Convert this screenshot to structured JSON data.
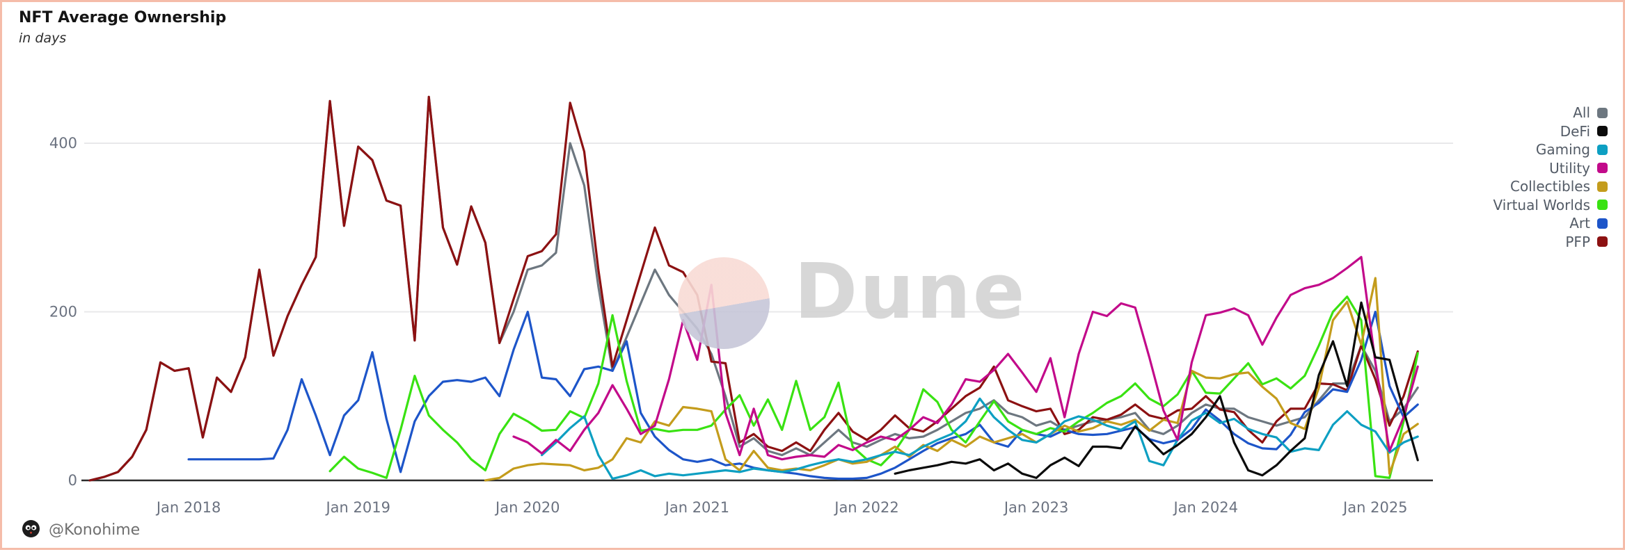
{
  "header": {
    "title": "NFT Average Ownership",
    "subtitle": "in days"
  },
  "watermark": {
    "text": "Dune"
  },
  "badge": {
    "text": "@Konohime"
  },
  "colors": {
    "border": "#f5bca9",
    "axis_line": "#2b2b2b",
    "gridline": "#e8e8ea",
    "tick_text": "#6b7280",
    "legend_text": "#535b66"
  },
  "chart_data": {
    "type": "line",
    "title": "NFT Average Ownership",
    "ylabel": "in days",
    "ylim": [
      0,
      470
    ],
    "yticks": [
      0,
      200,
      400
    ],
    "grid": "horizontal",
    "legend_position": "right-outside",
    "x": [
      "2017-06",
      "2017-07",
      "2017-08",
      "2017-09",
      "2017-10",
      "2017-11",
      "2017-12",
      "2018-01",
      "2018-02",
      "2018-03",
      "2018-04",
      "2018-05",
      "2018-06",
      "2018-07",
      "2018-08",
      "2018-09",
      "2018-10",
      "2018-11",
      "2018-12",
      "2019-01",
      "2019-02",
      "2019-03",
      "2019-04",
      "2019-05",
      "2019-06",
      "2019-07",
      "2019-08",
      "2019-09",
      "2019-10",
      "2019-11",
      "2019-12",
      "2020-01",
      "2020-02",
      "2020-03",
      "2020-04",
      "2020-05",
      "2020-06",
      "2020-07",
      "2020-08",
      "2020-09",
      "2020-10",
      "2020-11",
      "2020-12",
      "2021-01",
      "2021-02",
      "2021-03",
      "2021-04",
      "2021-05",
      "2021-06",
      "2021-07",
      "2021-08",
      "2021-09",
      "2021-10",
      "2021-11",
      "2021-12",
      "2022-01",
      "2022-02",
      "2022-03",
      "2022-04",
      "2022-05",
      "2022-06",
      "2022-07",
      "2022-08",
      "2022-09",
      "2022-10",
      "2022-11",
      "2022-12",
      "2023-01",
      "2023-02",
      "2023-03",
      "2023-04",
      "2023-05",
      "2023-06",
      "2023-07",
      "2023-08",
      "2023-09",
      "2023-10",
      "2023-11",
      "2023-12",
      "2024-01",
      "2024-02",
      "2024-03",
      "2024-04",
      "2024-05",
      "2024-06",
      "2024-07",
      "2024-08",
      "2024-09",
      "2024-10",
      "2024-11",
      "2024-12",
      "2025-01",
      "2025-02",
      "2025-03",
      "2025-04"
    ],
    "xtick_labels": [
      "Jan 2018",
      "Jan 2019",
      "Jan 2020",
      "Jan 2021",
      "Jan 2022",
      "Jan 2023",
      "Jan 2024",
      "Jan 2025"
    ],
    "xtick_month_indices": [
      7,
      19,
      31,
      43,
      55,
      67,
      79,
      91
    ],
    "draw_order": [
      0,
      7,
      6,
      5,
      4,
      2,
      3,
      1
    ],
    "series": [
      {
        "name": "All",
        "color": "#6d7780",
        "values": [
          0,
          4,
          10,
          28,
          60,
          140,
          130,
          133,
          51,
          122,
          105,
          146,
          250,
          148,
          195,
          232,
          265,
          450,
          302,
          396,
          380,
          332,
          326,
          166,
          455,
          300,
          256,
          325,
          282,
          163,
          200,
          250,
          255,
          270,
          400,
          350,
          230,
          130,
          170,
          210,
          250,
          220,
          200,
          180,
          150,
          100,
          40,
          50,
          35,
          30,
          38,
          30,
          45,
          60,
          45,
          40,
          48,
          55,
          50,
          52,
          60,
          70,
          80,
          85,
          95,
          80,
          75,
          65,
          70,
          60,
          65,
          70,
          72,
          75,
          80,
          60,
          55,
          65,
          80,
          90,
          85,
          85,
          75,
          70,
          65,
          70,
          75,
          95,
          115,
          115,
          160,
          130,
          70,
          85,
          110
        ]
      },
      {
        "name": "DeFi",
        "color": "#0b0b0b",
        "values": [
          null,
          null,
          null,
          null,
          null,
          null,
          null,
          null,
          null,
          null,
          null,
          null,
          null,
          null,
          null,
          null,
          null,
          null,
          null,
          null,
          null,
          null,
          null,
          null,
          null,
          null,
          null,
          null,
          null,
          null,
          null,
          null,
          null,
          null,
          null,
          null,
          null,
          null,
          null,
          null,
          null,
          null,
          null,
          null,
          null,
          null,
          null,
          null,
          null,
          null,
          null,
          null,
          null,
          null,
          null,
          null,
          null,
          8,
          12,
          15,
          18,
          22,
          20,
          25,
          12,
          20,
          8,
          3,
          18,
          27,
          17,
          40,
          40,
          38,
          64,
          48,
          31,
          42,
          55,
          75,
          100,
          45,
          12,
          6,
          18,
          35,
          50,
          125,
          165,
          112,
          211,
          146,
          143,
          83,
          24
        ]
      },
      {
        "name": "Gaming",
        "color": "#0d9fc2",
        "values": [
          null,
          null,
          null,
          null,
          null,
          null,
          null,
          null,
          null,
          null,
          null,
          null,
          null,
          null,
          null,
          null,
          null,
          null,
          null,
          null,
          null,
          null,
          null,
          null,
          null,
          null,
          null,
          null,
          null,
          null,
          null,
          null,
          30,
          45,
          62,
          76,
          30,
          2,
          6,
          12,
          5,
          8,
          6,
          8,
          10,
          12,
          10,
          14,
          12,
          10,
          13,
          18,
          22,
          25,
          22,
          25,
          30,
          34,
          30,
          40,
          48,
          55,
          70,
          97,
          75,
          60,
          48,
          45,
          55,
          70,
          76,
          72,
          65,
          60,
          70,
          23,
          18,
          48,
          71,
          80,
          68,
          73,
          61,
          55,
          51,
          34,
          38,
          36,
          66,
          82,
          66,
          58,
          33,
          45,
          52
        ]
      },
      {
        "name": "Utility",
        "color": "#c20a8a",
        "values": [
          null,
          null,
          null,
          null,
          null,
          null,
          null,
          null,
          null,
          null,
          null,
          null,
          null,
          null,
          null,
          null,
          null,
          null,
          null,
          null,
          null,
          null,
          null,
          null,
          null,
          null,
          null,
          null,
          null,
          null,
          52,
          45,
          32,
          48,
          35,
          60,
          80,
          113,
          85,
          55,
          65,
          120,
          190,
          143,
          232,
          80,
          30,
          85,
          30,
          25,
          28,
          30,
          28,
          42,
          36,
          45,
          52,
          48,
          60,
          75,
          68,
          90,
          120,
          117,
          131,
          150,
          128,
          105,
          145,
          75,
          150,
          200,
          195,
          210,
          205,
          146,
          83,
          48,
          140,
          196,
          199,
          204,
          196,
          161,
          193,
          220,
          228,
          232,
          240,
          252,
          265,
          140,
          35,
          75,
          135
        ]
      },
      {
        "name": "Collectibles",
        "color": "#c49c1c",
        "values": [
          null,
          null,
          null,
          null,
          null,
          null,
          null,
          null,
          null,
          null,
          null,
          null,
          null,
          null,
          null,
          null,
          null,
          null,
          null,
          null,
          null,
          null,
          null,
          null,
          null,
          null,
          null,
          null,
          0,
          3,
          14,
          18,
          20,
          19,
          18,
          12,
          15,
          25,
          50,
          45,
          70,
          65,
          87,
          85,
          82,
          25,
          12,
          35,
          15,
          12,
          14,
          12,
          18,
          25,
          20,
          22,
          30,
          40,
          28,
          42,
          35,
          48,
          40,
          52,
          45,
          50,
          55,
          45,
          55,
          65,
          58,
          62,
          70,
          66,
          72,
          59,
          72,
          68,
          130,
          122,
          121,
          126,
          128,
          111,
          97,
          68,
          61,
          110,
          190,
          212,
          161,
          240,
          8,
          55,
          67
        ]
      },
      {
        "name": "Virtual Worlds",
        "color": "#39e212",
        "values": [
          null,
          null,
          null,
          null,
          null,
          null,
          null,
          null,
          null,
          null,
          null,
          null,
          null,
          null,
          null,
          null,
          null,
          11,
          28,
          14,
          9,
          3,
          60,
          124,
          77,
          60,
          45,
          25,
          12,
          55,
          79,
          70,
          59,
          60,
          82,
          74,
          115,
          196,
          118,
          59,
          61,
          58,
          60,
          60,
          65,
          84,
          101,
          65,
          96,
          60,
          118,
          60,
          75,
          116,
          40,
          25,
          18,
          35,
          60,
          108,
          93,
          60,
          45,
          70,
          94,
          70,
          60,
          55,
          62,
          58,
          70,
          80,
          92,
          100,
          115,
          97,
          88,
          102,
          130,
          104,
          103,
          121,
          139,
          114,
          121,
          109,
          124,
          160,
          200,
          218,
          190,
          5,
          3,
          70,
          151
        ]
      },
      {
        "name": "Art",
        "color": "#1d55c9",
        "values": [
          null,
          null,
          null,
          null,
          null,
          null,
          null,
          25,
          25,
          25,
          25,
          25,
          25,
          26,
          60,
          120,
          77,
          30,
          77,
          95,
          152,
          73,
          10,
          70,
          100,
          117,
          119,
          117,
          122,
          100,
          155,
          200,
          122,
          120,
          100,
          132,
          135,
          130,
          165,
          80,
          52,
          36,
          25,
          22,
          25,
          18,
          20,
          15,
          12,
          10,
          8,
          5,
          3,
          2,
          2,
          3,
          8,
          15,
          25,
          35,
          44,
          50,
          55,
          66,
          45,
          40,
          60,
          55,
          52,
          60,
          55,
          54,
          55,
          59,
          63,
          49,
          44,
          48,
          61,
          84,
          71,
          55,
          44,
          38,
          37,
          54,
          81,
          92,
          108,
          105,
          143,
          200,
          112,
          75,
          90
        ]
      },
      {
        "name": "PFP",
        "color": "#8c1112",
        "values": [
          0,
          4,
          10,
          28,
          60,
          140,
          130,
          133,
          51,
          122,
          105,
          146,
          250,
          148,
          195,
          232,
          265,
          450,
          302,
          396,
          380,
          332,
          326,
          166,
          455,
          300,
          256,
          325,
          282,
          163,
          215,
          266,
          272,
          292,
          448,
          390,
          250,
          135,
          190,
          245,
          300,
          255,
          247,
          220,
          141,
          139,
          45,
          55,
          40,
          35,
          45,
          35,
          60,
          80,
          58,
          48,
          60,
          77,
          62,
          58,
          70,
          85,
          100,
          110,
          135,
          95,
          88,
          82,
          85,
          55,
          60,
          75,
          72,
          78,
          90,
          77,
          73,
          83,
          85,
          100,
          84,
          81,
          60,
          45,
          70,
          85,
          85,
          115,
          114,
          107,
          160,
          120,
          65,
          100,
          153
        ]
      }
    ]
  }
}
